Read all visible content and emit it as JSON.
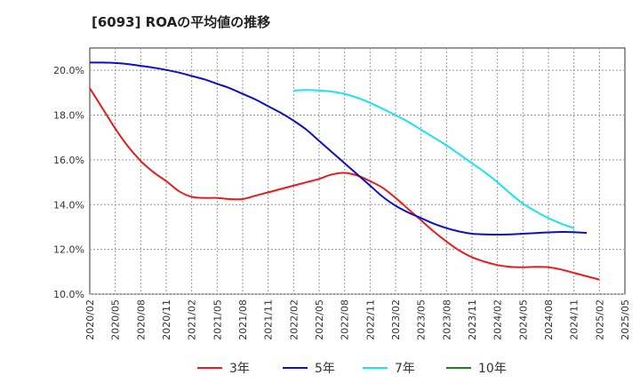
{
  "chart_data": {
    "type": "line",
    "title": "[6093]  ROAの平均値の推移",
    "xlabel": "",
    "ylabel": "",
    "ylim": [
      10.0,
      21.0
    ],
    "yticks": [
      "10.0%",
      "12.0%",
      "14.0%",
      "16.0%",
      "18.0%",
      "20.0%"
    ],
    "ytick_values": [
      10,
      12,
      14,
      16,
      18,
      20
    ],
    "x_labels": [
      "2020/02",
      "2020/05",
      "2020/08",
      "2020/11",
      "2021/02",
      "2021/05",
      "2021/08",
      "2021/11",
      "2022/02",
      "2022/05",
      "2022/08",
      "2022/11",
      "2023/02",
      "2023/05",
      "2023/08",
      "2023/11",
      "2024/02",
      "2024/05",
      "2024/08",
      "2024/11",
      "2025/02",
      "2025/05"
    ],
    "grid": true,
    "legend_position": "bottom",
    "series": [
      {
        "name": "3年",
        "color": "#e02020",
        "start_index": 0,
        "values": [
          19.2,
          18.3,
          17.4,
          16.6,
          15.95,
          15.45,
          15.05,
          14.6,
          14.35,
          14.3,
          14.3,
          14.25,
          14.25,
          14.4,
          14.55,
          14.7,
          14.85,
          15.0,
          15.15,
          15.35,
          15.42,
          15.3,
          15.05,
          14.75,
          14.3,
          13.8,
          13.3,
          12.8,
          12.35,
          11.95,
          11.65,
          11.45,
          11.3,
          11.22,
          11.2,
          11.22,
          11.2,
          11.1,
          10.95,
          10.8,
          10.65
        ]
      },
      {
        "name": "5年",
        "color": "#1010c0",
        "start_index": 0,
        "values": [
          20.35,
          20.35,
          20.33,
          20.28,
          20.2,
          20.12,
          20.02,
          19.9,
          19.75,
          19.6,
          19.4,
          19.2,
          18.95,
          18.7,
          18.4,
          18.1,
          17.75,
          17.35,
          16.85,
          16.35,
          15.85,
          15.35,
          14.85,
          14.35,
          13.95,
          13.65,
          13.4,
          13.15,
          12.95,
          12.8,
          12.7,
          12.67,
          12.66,
          12.67,
          12.7,
          12.73,
          12.76,
          12.78,
          12.77,
          12.74
        ]
      },
      {
        "name": "7年",
        "color": "#20e0f0",
        "start_index": 16,
        "values": [
          19.1,
          19.12,
          19.1,
          19.05,
          18.95,
          18.78,
          18.55,
          18.28,
          18.0,
          17.7,
          17.35,
          17.0,
          16.65,
          16.25,
          15.85,
          15.45,
          15.0,
          14.5,
          14.05,
          13.7,
          13.4,
          13.15,
          12.95
        ]
      },
      {
        "name": "10年",
        "color": "#208020",
        "start_index": 0,
        "values": []
      }
    ]
  }
}
